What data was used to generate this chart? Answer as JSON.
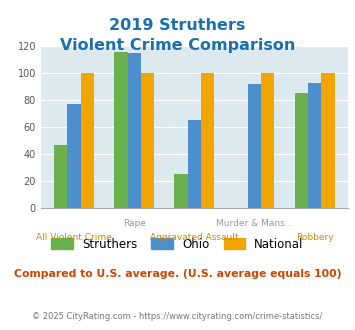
{
  "title_line1": "2019 Struthers",
  "title_line2": "Violent Crime Comparison",
  "groups": [
    {
      "label": "All Violent Crime",
      "struthers": 47,
      "ohio": 77,
      "national": 100
    },
    {
      "label": "Rape",
      "struthers": 116,
      "ohio": 115,
      "national": 100
    },
    {
      "label": "Aggravated Assault",
      "struthers": 25,
      "ohio": 65,
      "national": 100
    },
    {
      "label": "Murder & Mans...",
      "struthers": 0,
      "ohio": 92,
      "national": 100
    },
    {
      "label": "Robbery",
      "struthers": 85,
      "ohio": 93,
      "national": 100
    }
  ],
  "color_struthers": "#6ab04c",
  "color_ohio": "#4d8fcc",
  "color_national": "#f0a500",
  "ylim": [
    0,
    120
  ],
  "yticks": [
    0,
    20,
    40,
    60,
    80,
    100,
    120
  ],
  "bg_color": "#dce9ef",
  "note": "Compared to U.S. average. (U.S. average equals 100)",
  "footer": "© 2025 CityRating.com - https://www.cityrating.com/crime-statistics/",
  "title_color": "#1a6faf",
  "note_color": "#cc4400",
  "footer_color": "#777777",
  "footer_link_color": "#4d8fcc",
  "xlabel_top_color": "#999999",
  "xlabel_bot_color": "#cc8800",
  "top_labels": [
    "",
    "Rape",
    "",
    "Murder & Mans...",
    ""
  ],
  "bot_labels": [
    "All Violent Crime",
    "",
    "Aggravated Assault",
    "",
    "Robbery"
  ]
}
